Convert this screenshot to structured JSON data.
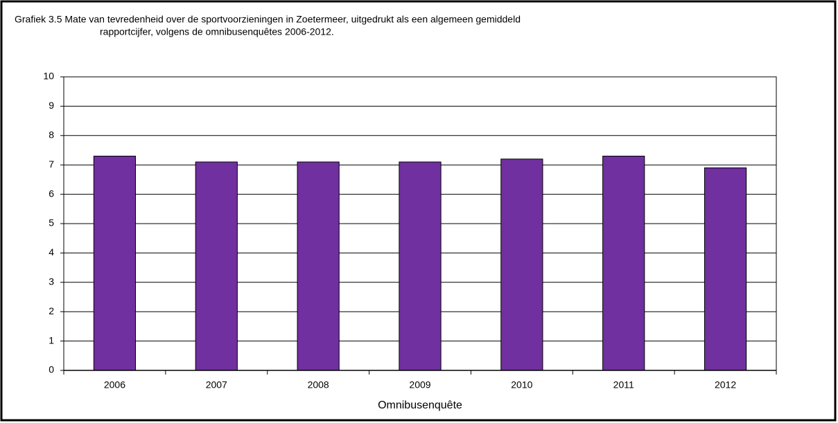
{
  "chart_data": {
    "type": "bar",
    "title": [
      "Grafiek 3.5  Mate van tevredenheid over de sportvoorzieningen in Zoetermeer, uitgedrukt als een algemeen gemiddeld",
      "rapportcijfer, volgens de omnibusenquêtes 2006-2012."
    ],
    "x_label": "Omnibusenquête",
    "categories": [
      "2006",
      "2007",
      "2008",
      "2009",
      "2010",
      "2011",
      "2012"
    ],
    "values": [
      7.3,
      7.1,
      7.1,
      7.1,
      7.2,
      7.3,
      6.9
    ],
    "color": "#7030a0",
    "ylim": [
      0,
      10
    ],
    "yticks": [
      0,
      1,
      2,
      3,
      4,
      5,
      6,
      7,
      8,
      9,
      10
    ],
    "grid": true
  }
}
